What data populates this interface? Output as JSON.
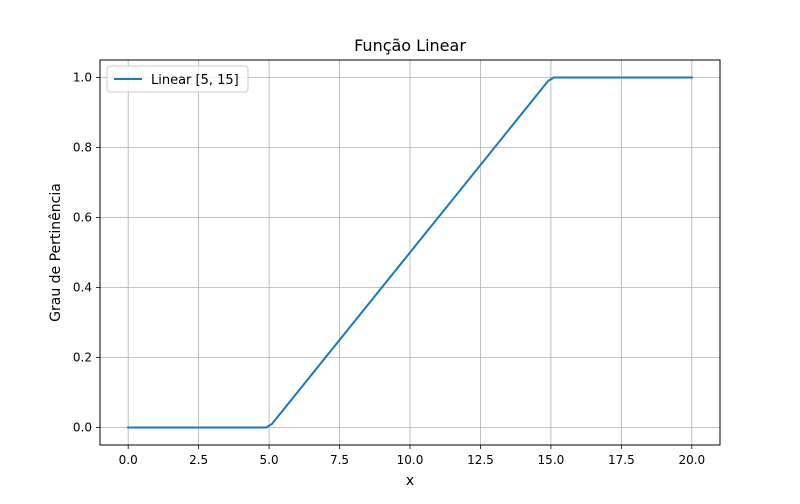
{
  "chart_data": {
    "type": "line",
    "title": "Função Linear",
    "xlabel": "x",
    "ylabel": "Grau de Pertinência",
    "xlim": [
      -1.0,
      21.0
    ],
    "ylim": [
      -0.05,
      1.05
    ],
    "xticks": [
      0.0,
      2.5,
      5.0,
      7.5,
      10.0,
      12.5,
      15.0,
      17.5,
      20.0
    ],
    "xtick_labels": [
      "0.0",
      "2.5",
      "5.0",
      "7.5",
      "10.0",
      "12.5",
      "15.0",
      "17.5",
      "20.0"
    ],
    "yticks": [
      0.0,
      0.2,
      0.4,
      0.6,
      0.8,
      1.0
    ],
    "ytick_labels": [
      "0.0",
      "0.2",
      "0.4",
      "0.6",
      "0.8",
      "1.0"
    ],
    "grid": true,
    "legend_position": "upper-left",
    "series": [
      {
        "name": "Linear [5, 15]",
        "color": "#1f77b4",
        "x": [
          0,
          4.9,
          5.1,
          14.9,
          15.1,
          20
        ],
        "y": [
          0,
          0,
          0.01,
          0.99,
          1,
          1
        ]
      }
    ]
  }
}
